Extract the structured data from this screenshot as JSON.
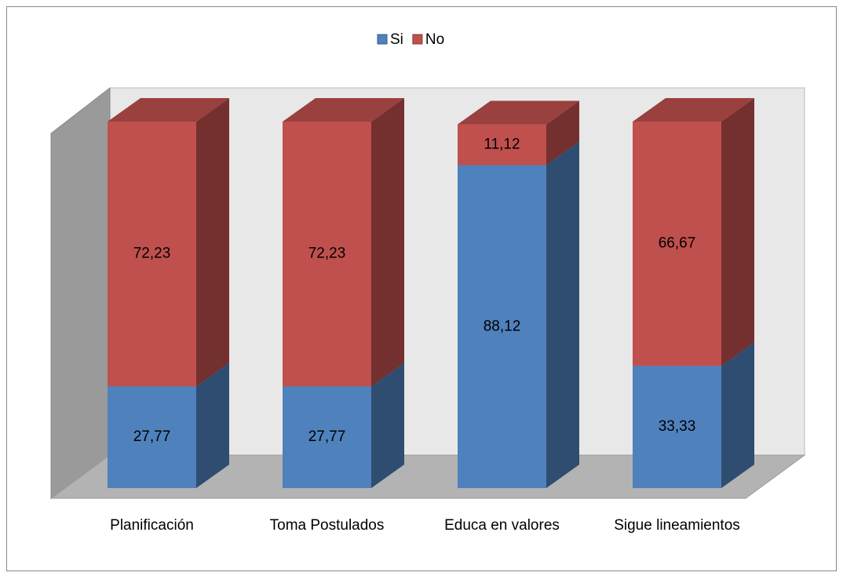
{
  "chart_data": {
    "type": "bar3d_stacked",
    "categories": [
      "Planificación",
      "Toma Postulados",
      "Educa en valores",
      "Sigue lineamientos"
    ],
    "series": [
      {
        "name": "Si",
        "color": "#4f81bd",
        "values": [
          27.77,
          27.77,
          88.12,
          33.33
        ],
        "value_labels": [
          "27,77",
          "27,77",
          "88,12",
          "33,33"
        ]
      },
      {
        "name": "No",
        "color": "#c0504d",
        "values": [
          72.23,
          72.23,
          11.12,
          66.67
        ],
        "value_labels": [
          "72,23",
          "72,23",
          "11,12",
          "66,67"
        ]
      }
    ],
    "ylim": [
      0,
      100
    ],
    "legend": "top"
  }
}
